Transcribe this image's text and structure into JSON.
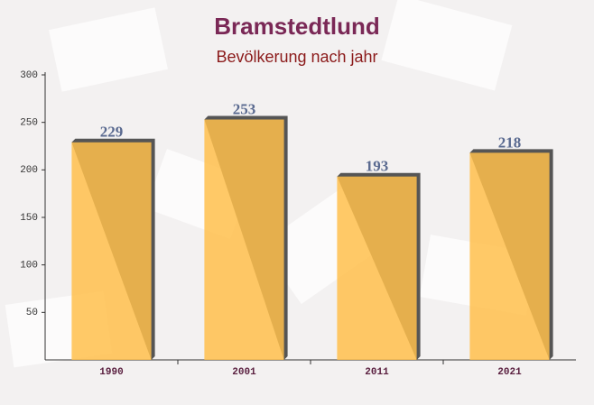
{
  "chart_data": {
    "type": "bar",
    "title": "Bramstedtlund",
    "subtitle": "Bevölkerung nach jahr",
    "categories": [
      "1990",
      "2001",
      "2011",
      "2021"
    ],
    "values": [
      229,
      253,
      193,
      218
    ],
    "color": "#ffc04c",
    "ylim": [
      0,
      300
    ],
    "yticks": [
      50,
      100,
      150,
      200,
      250,
      300
    ],
    "grid": false
  }
}
